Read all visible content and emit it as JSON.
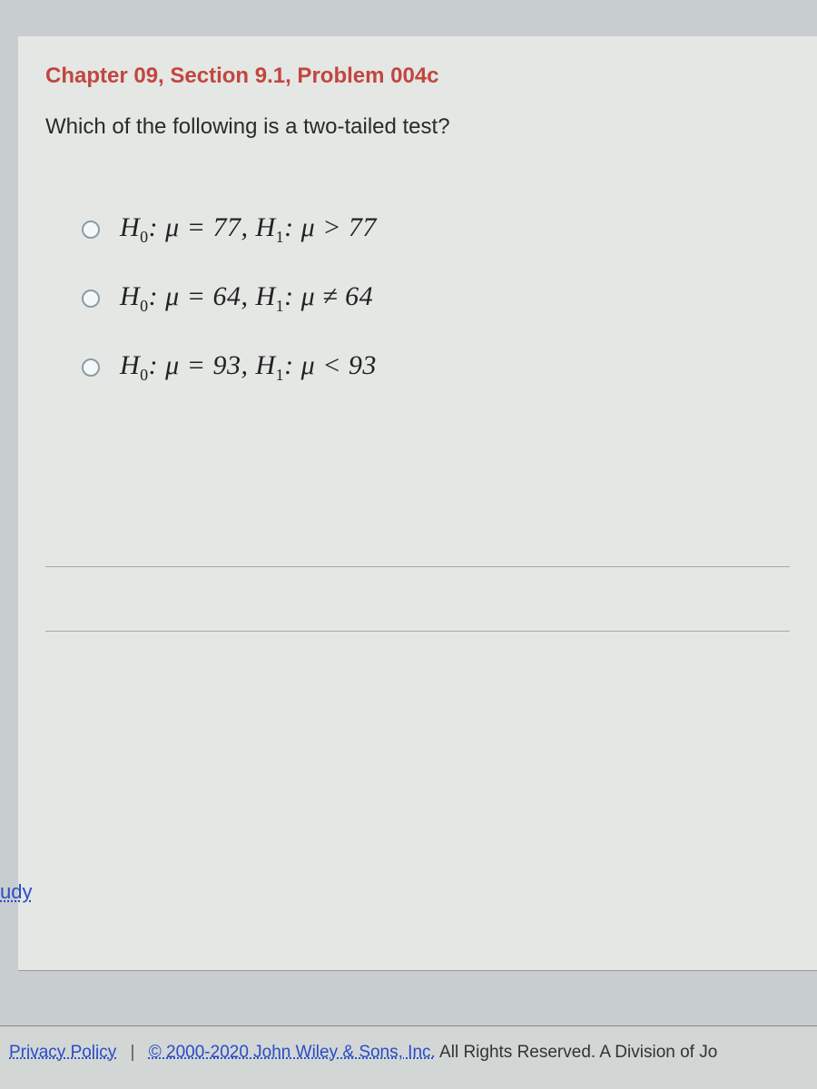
{
  "header": {
    "title": "Chapter 09, Section 9.1, Problem 004c"
  },
  "question": {
    "text": "Which of the following is a two-tailed test?"
  },
  "options": [
    {
      "h0_label": "H",
      "h0_sub": "0",
      "h0_rest": ": μ = 77, ",
      "h1_label": "H",
      "h1_sub": "1",
      "h1_rest": ": μ > 77"
    },
    {
      "h0_label": "H",
      "h0_sub": "0",
      "h0_rest": ": μ = 64, ",
      "h1_label": "H",
      "h1_sub": "1",
      "h1_rest": ": μ ≠ 64"
    },
    {
      "h0_label": "H",
      "h0_sub": "0",
      "h0_rest": ": μ = 93, ",
      "h1_label": "H",
      "h1_sub": "1",
      "h1_rest": ": μ < 93"
    }
  ],
  "side_link": "udy",
  "footer": {
    "privacy": "Privacy Policy",
    "sep": "|",
    "copyright_link": "© 2000-2020 John Wiley & Sons, Inc.",
    "copyright_rest": " All Rights Reserved. A Division of Jo"
  },
  "colors": {
    "title_color": "#c1463f",
    "panel_bg": "#e4e7e4",
    "body_bg": "#c8cdd0",
    "link_color": "#2a4cc7"
  }
}
